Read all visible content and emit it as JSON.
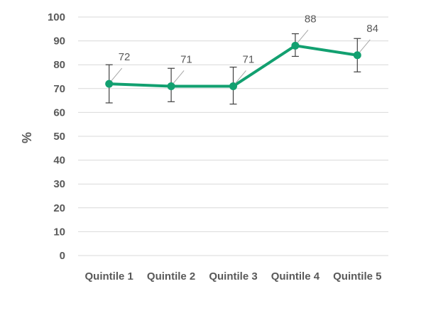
{
  "chart_data": {
    "type": "line",
    "categories": [
      "Quintile 1",
      "Quintile 2",
      "Quintile 3",
      "Quintile 4",
      "Quintile 5"
    ],
    "series": [
      {
        "values": [
          72,
          71,
          71,
          88,
          84
        ],
        "error_low": [
          64,
          64.5,
          63.5,
          83.5,
          77
        ],
        "error_high": [
          80,
          78.5,
          79,
          93,
          91
        ],
        "data_labels": [
          "72",
          "71",
          "71",
          "88",
          "84"
        ]
      }
    ],
    "ylabel": "%",
    "xlabel": "",
    "ylim": [
      0,
      100
    ],
    "yticks": [
      "0",
      "10",
      "20",
      "30",
      "40",
      "50",
      "60",
      "70",
      "80",
      "90",
      "100"
    ],
    "grid": "horizontal",
    "legend": "none",
    "colors": {
      "line": "#12A070",
      "grid": "#D9D9D9",
      "error_bar": "#404040",
      "leader": "#A6A6A6",
      "text": "#595959"
    }
  }
}
